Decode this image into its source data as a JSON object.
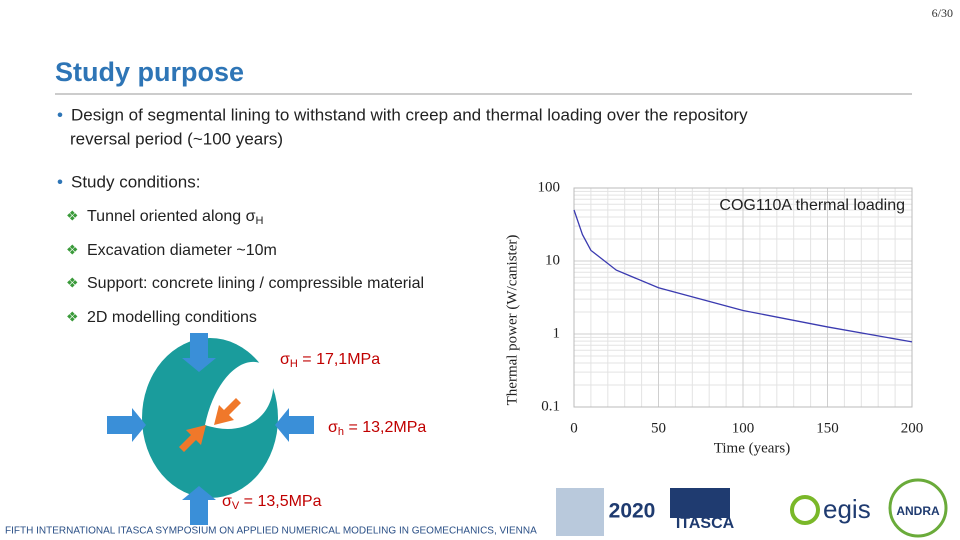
{
  "page_number": "6/30",
  "title": "Study purpose",
  "bullets": [
    {
      "lines": [
        "Design of segmental lining to withstand with creep and thermal loading over the repository",
        "reversal period (~100 years)"
      ]
    },
    {
      "lines": [
        "Study conditions:"
      ]
    }
  ],
  "sub_bullets": [
    {
      "text": "Tunnel oriented along σ",
      "sub": "H"
    },
    {
      "text": "Excavation diameter ~10m"
    },
    {
      "text": "Support: concrete lining / compressible material"
    },
    {
      "text": "2D modelling conditions"
    }
  ],
  "stresses": [
    {
      "symbol": "σ",
      "sub": "H",
      "value": " = 17,1MPa"
    },
    {
      "symbol": "σ",
      "sub": "h",
      "value": " = 13,2MPa"
    },
    {
      "symbol": "σ",
      "sub": "V",
      "value": " = 13,5MPa"
    }
  ],
  "footer": "FIFTH INTERNATIONAL ITASCA SYMPOSIUM ON APPLIED NUMERICAL MODELING IN GEOMECHANICS, VIENNA",
  "logos": [
    "2020",
    "ITASCA",
    "egis",
    "ANDRA"
  ],
  "chart_data": {
    "type": "line",
    "title": "COG110A thermal loading",
    "x_label": "Time (years)",
    "y_label": "Thermal power (W/canister)",
    "x": [
      0,
      5,
      10,
      25,
      50,
      100,
      150,
      200
    ],
    "series": [
      {
        "name": "COG110A",
        "color": "#3a3ab0",
        "values": [
          50,
          23,
          14,
          7.5,
          4.3,
          2.1,
          1.25,
          0.78
        ]
      }
    ],
    "xlim": [
      0,
      200
    ],
    "xticks": [
      0,
      50,
      100,
      150,
      200
    ],
    "ylim": [
      0.1,
      100
    ],
    "yticks": [
      0.1,
      1,
      10,
      100
    ],
    "log_y": true,
    "grid": true
  }
}
